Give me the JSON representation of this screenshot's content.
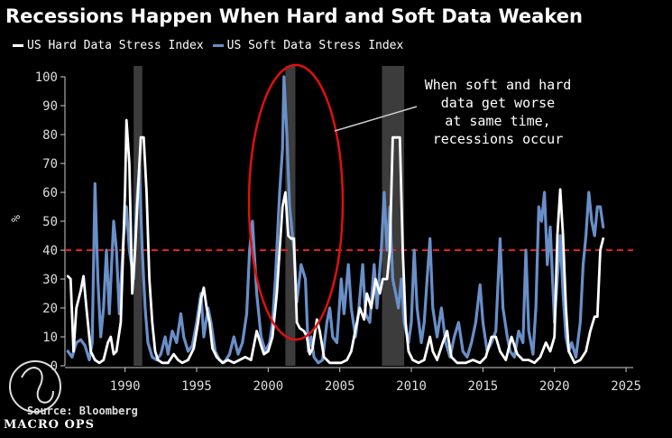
{
  "chart_data": {
    "type": "line",
    "title": "Recessions Happen When Hard and Soft Data Weaken",
    "ylabel": "%",
    "xlim": [
      1985.8,
      2025.5
    ],
    "ylim": [
      0,
      100
    ],
    "x_ticks": [
      1990,
      1995,
      2000,
      2005,
      2010,
      2015,
      2020,
      2025
    ],
    "y_ticks": [
      0,
      10,
      20,
      30,
      40,
      50,
      60,
      70,
      80,
      90,
      100
    ],
    "recessions": [
      [
        1990.6,
        1991.2
      ],
      [
        2001.2,
        2001.9
      ],
      [
        2007.95,
        2009.5
      ]
    ],
    "reference_line": {
      "value": 40,
      "color": "#e02020"
    },
    "grid": false,
    "legend_position": "top-left",
    "series": [
      {
        "name": "US Hard Data Stress Index",
        "color": "#ffffff",
        "points": [
          [
            1986.0,
            31
          ],
          [
            1986.2,
            30
          ],
          [
            1986.4,
            5
          ],
          [
            1986.6,
            20
          ],
          [
            1986.9,
            26
          ],
          [
            1987.1,
            31
          ],
          [
            1987.3,
            20
          ],
          [
            1987.6,
            5
          ],
          [
            1987.9,
            2
          ],
          [
            1988.2,
            1
          ],
          [
            1988.5,
            2
          ],
          [
            1988.8,
            8
          ],
          [
            1989.0,
            10
          ],
          [
            1989.2,
            4
          ],
          [
            1989.4,
            5
          ],
          [
            1989.7,
            15
          ],
          [
            1990.0,
            60
          ],
          [
            1990.1,
            85
          ],
          [
            1990.3,
            70
          ],
          [
            1990.5,
            25
          ],
          [
            1990.7,
            40
          ],
          [
            1990.9,
            60
          ],
          [
            1991.1,
            79
          ],
          [
            1991.3,
            79
          ],
          [
            1991.5,
            60
          ],
          [
            1991.7,
            30
          ],
          [
            1991.9,
            15
          ],
          [
            1992.1,
            5
          ],
          [
            1992.3,
            2
          ],
          [
            1992.6,
            1
          ],
          [
            1993.0,
            1
          ],
          [
            1993.4,
            4
          ],
          [
            1993.7,
            2
          ],
          [
            1994.0,
            1
          ],
          [
            1994.4,
            2
          ],
          [
            1994.8,
            6
          ],
          [
            1995.1,
            15
          ],
          [
            1995.3,
            23
          ],
          [
            1995.5,
            27
          ],
          [
            1995.7,
            20
          ],
          [
            1995.9,
            15
          ],
          [
            1996.1,
            6
          ],
          [
            1996.4,
            3
          ],
          [
            1996.8,
            1
          ],
          [
            1997.2,
            2
          ],
          [
            1997.6,
            1
          ],
          [
            1998.0,
            2
          ],
          [
            1998.4,
            3
          ],
          [
            1998.8,
            2
          ],
          [
            1999.2,
            12
          ],
          [
            1999.5,
            7
          ],
          [
            1999.7,
            4
          ],
          [
            2000.0,
            5
          ],
          [
            2000.3,
            10
          ],
          [
            2000.6,
            25
          ],
          [
            2000.8,
            40
          ],
          [
            2001.0,
            55
          ],
          [
            2001.2,
            60
          ],
          [
            2001.4,
            45
          ],
          [
            2001.6,
            44
          ],
          [
            2001.8,
            44
          ],
          [
            2002.0,
            15
          ],
          [
            2002.2,
            13
          ],
          [
            2002.5,
            12
          ],
          [
            2002.7,
            10
          ],
          [
            2002.9,
            4
          ],
          [
            2003.1,
            6
          ],
          [
            2003.4,
            16
          ],
          [
            2003.6,
            12
          ],
          [
            2003.9,
            3
          ],
          [
            2004.3,
            1
          ],
          [
            2004.7,
            1
          ],
          [
            2005.1,
            1
          ],
          [
            2005.5,
            2
          ],
          [
            2005.8,
            5
          ],
          [
            2006.2,
            15
          ],
          [
            2006.4,
            20
          ],
          [
            2006.7,
            16
          ],
          [
            2006.9,
            25
          ],
          [
            2007.2,
            20
          ],
          [
            2007.5,
            30
          ],
          [
            2007.8,
            25
          ],
          [
            2008.0,
            30
          ],
          [
            2008.3,
            30
          ],
          [
            2008.5,
            40
          ],
          [
            2008.7,
            79
          ],
          [
            2009.2,
            79
          ],
          [
            2009.4,
            40
          ],
          [
            2009.6,
            15
          ],
          [
            2009.8,
            5
          ],
          [
            2010.1,
            2
          ],
          [
            2010.5,
            1
          ],
          [
            2010.9,
            2
          ],
          [
            2011.3,
            10
          ],
          [
            2011.5,
            5
          ],
          [
            2011.8,
            2
          ],
          [
            2012.2,
            8
          ],
          [
            2012.5,
            12
          ],
          [
            2012.8,
            3
          ],
          [
            2013.2,
            1
          ],
          [
            2013.8,
            1
          ],
          [
            2014.3,
            2
          ],
          [
            2014.8,
            1
          ],
          [
            2015.2,
            3
          ],
          [
            2015.6,
            10
          ],
          [
            2015.9,
            10
          ],
          [
            2016.2,
            5
          ],
          [
            2016.6,
            2
          ],
          [
            2017.0,
            10
          ],
          [
            2017.4,
            4
          ],
          [
            2017.8,
            2
          ],
          [
            2018.2,
            2
          ],
          [
            2018.6,
            1
          ],
          [
            2019.0,
            3
          ],
          [
            2019.4,
            8
          ],
          [
            2019.7,
            5
          ],
          [
            2020.0,
            10
          ],
          [
            2020.2,
            45
          ],
          [
            2020.4,
            61
          ],
          [
            2020.6,
            45
          ],
          [
            2020.8,
            20
          ],
          [
            2021.0,
            5
          ],
          [
            2021.4,
            1
          ],
          [
            2021.8,
            2
          ],
          [
            2022.2,
            5
          ],
          [
            2022.5,
            12
          ],
          [
            2022.8,
            17
          ],
          [
            2023.0,
            17
          ],
          [
            2023.2,
            40
          ],
          [
            2023.4,
            44
          ]
        ]
      },
      {
        "name": "US Soft Data Stress Index",
        "color": "#6a8fc8",
        "points": [
          [
            1986.0,
            5
          ],
          [
            1986.3,
            3
          ],
          [
            1986.6,
            8
          ],
          [
            1986.9,
            9
          ],
          [
            1987.2,
            7
          ],
          [
            1987.5,
            2
          ],
          [
            1987.7,
            8
          ],
          [
            1987.9,
            63
          ],
          [
            1988.1,
            30
          ],
          [
            1988.3,
            10
          ],
          [
            1988.5,
            20
          ],
          [
            1988.7,
            40
          ],
          [
            1988.9,
            18
          ],
          [
            1989.2,
            50
          ],
          [
            1989.4,
            40
          ],
          [
            1989.6,
            18
          ],
          [
            1989.9,
            45
          ],
          [
            1990.1,
            55
          ],
          [
            1990.3,
            40
          ],
          [
            1990.6,
            30
          ],
          [
            1990.8,
            55
          ],
          [
            1991.0,
            68
          ],
          [
            1991.2,
            40
          ],
          [
            1991.4,
            20
          ],
          [
            1991.6,
            8
          ],
          [
            1991.9,
            3
          ],
          [
            1992.2,
            2
          ],
          [
            1992.5,
            4
          ],
          [
            1992.8,
            10
          ],
          [
            1993.0,
            4
          ],
          [
            1993.3,
            12
          ],
          [
            1993.6,
            8
          ],
          [
            1993.9,
            18
          ],
          [
            1994.1,
            10
          ],
          [
            1994.4,
            5
          ],
          [
            1994.7,
            7
          ],
          [
            1995.0,
            15
          ],
          [
            1995.3,
            25
          ],
          [
            1995.5,
            10
          ],
          [
            1995.8,
            20
          ],
          [
            1996.0,
            15
          ],
          [
            1996.3,
            5
          ],
          [
            1996.6,
            2
          ],
          [
            1996.9,
            1
          ],
          [
            1997.3,
            4
          ],
          [
            1997.6,
            10
          ],
          [
            1997.9,
            4
          ],
          [
            1998.2,
            8
          ],
          [
            1998.5,
            18
          ],
          [
            1998.7,
            40
          ],
          [
            1998.9,
            50
          ],
          [
            1999.2,
            25
          ],
          [
            1999.5,
            10
          ],
          [
            1999.8,
            5
          ],
          [
            2000.1,
            8
          ],
          [
            2000.3,
            15
          ],
          [
            2000.5,
            30
          ],
          [
            2000.8,
            60
          ],
          [
            2001.0,
            75
          ],
          [
            2001.1,
            100
          ],
          [
            2001.3,
            80
          ],
          [
            2001.5,
            55
          ],
          [
            2001.8,
            40
          ],
          [
            2002.0,
            22
          ],
          [
            2002.3,
            35
          ],
          [
            2002.6,
            30
          ],
          [
            2002.8,
            5
          ],
          [
            2003.0,
            10
          ],
          [
            2003.2,
            3
          ],
          [
            2003.5,
            1
          ],
          [
            2003.8,
            2
          ],
          [
            2004.1,
            15
          ],
          [
            2004.3,
            20
          ],
          [
            2004.5,
            10
          ],
          [
            2004.8,
            8
          ],
          [
            2005.1,
            30
          ],
          [
            2005.3,
            18
          ],
          [
            2005.6,
            35
          ],
          [
            2005.8,
            20
          ],
          [
            2006.1,
            10
          ],
          [
            2006.3,
            18
          ],
          [
            2006.6,
            35
          ],
          [
            2006.8,
            18
          ],
          [
            2007.1,
            15
          ],
          [
            2007.4,
            35
          ],
          [
            2007.6,
            20
          ],
          [
            2007.9,
            40
          ],
          [
            2008.1,
            60
          ],
          [
            2008.3,
            40
          ],
          [
            2008.5,
            55
          ],
          [
            2008.7,
            30
          ],
          [
            2008.9,
            25
          ],
          [
            2009.1,
            20
          ],
          [
            2009.3,
            30
          ],
          [
            2009.5,
            15
          ],
          [
            2009.8,
            8
          ],
          [
            2010.0,
            15
          ],
          [
            2010.2,
            40
          ],
          [
            2010.4,
            20
          ],
          [
            2010.7,
            8
          ],
          [
            2010.9,
            15
          ],
          [
            2011.1,
            30
          ],
          [
            2011.3,
            44
          ],
          [
            2011.5,
            20
          ],
          [
            2011.8,
            10
          ],
          [
            2012.1,
            20
          ],
          [
            2012.4,
            8
          ],
          [
            2012.7,
            3
          ],
          [
            2013.0,
            10
          ],
          [
            2013.3,
            15
          ],
          [
            2013.6,
            5
          ],
          [
            2013.9,
            3
          ],
          [
            2014.2,
            8
          ],
          [
            2014.5,
            15
          ],
          [
            2014.8,
            28
          ],
          [
            2015.0,
            15
          ],
          [
            2015.3,
            5
          ],
          [
            2015.6,
            8
          ],
          [
            2015.9,
            12
          ],
          [
            2016.2,
            44
          ],
          [
            2016.4,
            20
          ],
          [
            2016.7,
            10
          ],
          [
            2016.9,
            5
          ],
          [
            2017.2,
            3
          ],
          [
            2017.5,
            12
          ],
          [
            2017.8,
            8
          ],
          [
            2018.0,
            40
          ],
          [
            2018.2,
            12
          ],
          [
            2018.5,
            4
          ],
          [
            2018.7,
            20
          ],
          [
            2018.9,
            55
          ],
          [
            2019.1,
            50
          ],
          [
            2019.3,
            60
          ],
          [
            2019.5,
            35
          ],
          [
            2019.7,
            48
          ],
          [
            2020.0,
            15
          ],
          [
            2020.2,
            30
          ],
          [
            2020.4,
            45
          ],
          [
            2020.6,
            25
          ],
          [
            2020.8,
            10
          ],
          [
            2021.0,
            5
          ],
          [
            2021.2,
            8
          ],
          [
            2021.5,
            3
          ],
          [
            2021.8,
            15
          ],
          [
            2022.0,
            35
          ],
          [
            2022.2,
            45
          ],
          [
            2022.4,
            60
          ],
          [
            2022.6,
            50
          ],
          [
            2022.8,
            45
          ],
          [
            2023.0,
            55
          ],
          [
            2023.2,
            55
          ],
          [
            2023.4,
            48
          ]
        ]
      }
    ],
    "annotations": [
      {
        "lines": [
          "When soft and hard",
          "data get worse",
          "at same time,",
          "recessions occur"
        ]
      }
    ]
  },
  "footer": {
    "source": "Source: Bloomberg",
    "logo_text": "MACRO OPS"
  }
}
